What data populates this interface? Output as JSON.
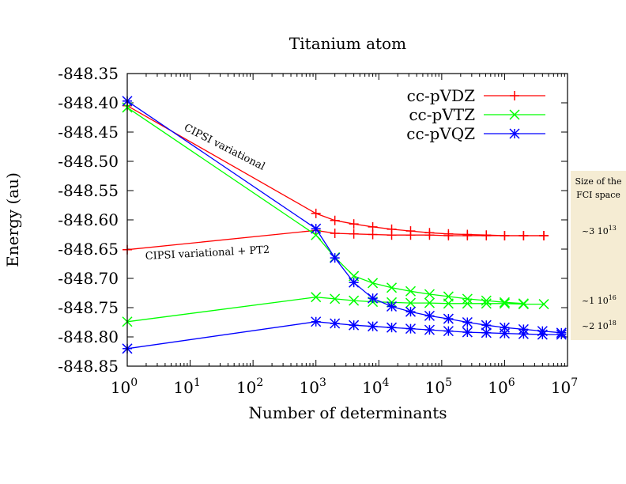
{
  "chart_data": {
    "type": "line",
    "title": "Titanium atom",
    "xlabel": "Number of determinants",
    "ylabel": "Energy (au)",
    "xscale": "log",
    "xlim": [
      1,
      10000000
    ],
    "ylim": [
      -848.85,
      -848.35
    ],
    "x_ticks": [
      {
        "base": "10",
        "exp": "0",
        "value": 1
      },
      {
        "base": "10",
        "exp": "1",
        "value": 10
      },
      {
        "base": "10",
        "exp": "2",
        "value": 100
      },
      {
        "base": "10",
        "exp": "3",
        "value": 1000
      },
      {
        "base": "10",
        "exp": "4",
        "value": 10000
      },
      {
        "base": "10",
        "exp": "5",
        "value": 100000
      },
      {
        "base": "10",
        "exp": "6",
        "value": 1000000
      },
      {
        "base": "10",
        "exp": "7",
        "value": 10000000
      }
    ],
    "y_ticks": [
      {
        "label": "-848.35",
        "value": -848.35
      },
      {
        "label": "-848.40",
        "value": -848.4
      },
      {
        "label": "-848.45",
        "value": -848.45
      },
      {
        "label": "-848.50",
        "value": -848.5
      },
      {
        "label": "-848.55",
        "value": -848.55
      },
      {
        "label": "-848.60",
        "value": -848.6
      },
      {
        "label": "-848.65",
        "value": -848.65
      },
      {
        "label": "-848.70",
        "value": -848.7
      },
      {
        "label": "-848.75",
        "value": -848.75
      },
      {
        "label": "-848.80",
        "value": -848.8
      },
      {
        "label": "-848.85",
        "value": -848.85
      }
    ],
    "legend_position": "top-right",
    "series": [
      {
        "name": "cc-pVDZ",
        "color": "#ff0000",
        "marker": "plus",
        "variational": [
          [
            1,
            -848.405
          ],
          [
            1000,
            -848.589
          ],
          [
            2000,
            -848.601
          ],
          [
            4000,
            -848.607
          ],
          [
            8000,
            -848.612
          ],
          [
            16000,
            -848.616
          ],
          [
            32000,
            -848.619
          ],
          [
            64000,
            -848.622
          ],
          [
            128000,
            -848.624
          ],
          [
            256000,
            -848.625
          ],
          [
            512000,
            -848.626
          ],
          [
            1000000,
            -848.627
          ],
          [
            2000000,
            -848.627
          ],
          [
            4200000,
            -848.627
          ]
        ],
        "pt2": [
          [
            1,
            -848.651
          ],
          [
            1000,
            -848.618
          ],
          [
            2000,
            -848.623
          ],
          [
            4000,
            -848.624
          ],
          [
            8000,
            -848.625
          ],
          [
            16000,
            -848.626
          ],
          [
            32000,
            -848.626
          ],
          [
            64000,
            -848.626
          ],
          [
            128000,
            -848.627
          ],
          [
            256000,
            -848.627
          ],
          [
            512000,
            -848.627
          ],
          [
            1000000,
            -848.627
          ],
          [
            2000000,
            -848.627
          ],
          [
            4200000,
            -848.627
          ]
        ]
      },
      {
        "name": "cc-pVTZ",
        "color": "#00ff00",
        "marker": "cross",
        "variational": [
          [
            1,
            -848.408
          ],
          [
            1000,
            -848.626
          ],
          [
            2000,
            -848.664
          ],
          [
            4000,
            -848.696
          ],
          [
            8000,
            -848.708
          ],
          [
            16000,
            -848.716
          ],
          [
            32000,
            -848.722
          ],
          [
            64000,
            -848.727
          ],
          [
            128000,
            -848.731
          ],
          [
            256000,
            -848.735
          ],
          [
            512000,
            -848.738
          ],
          [
            1000000,
            -848.741
          ],
          [
            2000000,
            -848.743
          ]
        ],
        "pt2": [
          [
            1,
            -848.774
          ],
          [
            1000,
            -848.732
          ],
          [
            2000,
            -848.735
          ],
          [
            4000,
            -848.738
          ],
          [
            8000,
            -848.74
          ],
          [
            16000,
            -848.741
          ],
          [
            32000,
            -848.742
          ],
          [
            64000,
            -848.742
          ],
          [
            128000,
            -848.743
          ],
          [
            256000,
            -848.743
          ],
          [
            512000,
            -848.743
          ],
          [
            1000000,
            -848.743
          ],
          [
            2000000,
            -848.744
          ],
          [
            4200000,
            -848.744
          ]
        ]
      },
      {
        "name": "cc-pVQZ",
        "color": "#0000ff",
        "marker": "star",
        "variational": [
          [
            1,
            -848.397
          ],
          [
            1000,
            -848.615
          ],
          [
            2000,
            -848.665
          ],
          [
            4000,
            -848.707
          ],
          [
            8000,
            -848.734
          ],
          [
            16000,
            -848.748
          ],
          [
            32000,
            -848.757
          ],
          [
            64000,
            -848.764
          ],
          [
            128000,
            -848.769
          ],
          [
            256000,
            -848.775
          ],
          [
            512000,
            -848.78
          ],
          [
            1000000,
            -848.784
          ],
          [
            2000000,
            -848.787
          ],
          [
            4000000,
            -848.79
          ],
          [
            8000000,
            -848.793
          ]
        ],
        "pt2": [
          [
            1,
            -848.82
          ],
          [
            1000,
            -848.774
          ],
          [
            2000,
            -848.777
          ],
          [
            4000,
            -848.78
          ],
          [
            8000,
            -848.782
          ],
          [
            16000,
            -848.784
          ],
          [
            32000,
            -848.786
          ],
          [
            64000,
            -848.788
          ],
          [
            128000,
            -848.79
          ],
          [
            256000,
            -848.792
          ],
          [
            512000,
            -848.793
          ],
          [
            1000000,
            -848.794
          ],
          [
            2000000,
            -848.795
          ],
          [
            4000000,
            -848.796
          ],
          [
            8000000,
            -848.796
          ]
        ]
      }
    ],
    "annotations": {
      "variational": "CIPSI variational",
      "pt2": "CIPSI variational + PT2"
    },
    "fci_box": {
      "header_line1": "Size of the",
      "header_line2": "FCI space",
      "background": "#f5ecd3",
      "entries": [
        {
          "mantissa": "~3 10",
          "exp": "13"
        },
        {
          "mantissa": "~1 10",
          "exp": "16"
        },
        {
          "mantissa": "~2 10",
          "exp": "18"
        }
      ]
    }
  }
}
